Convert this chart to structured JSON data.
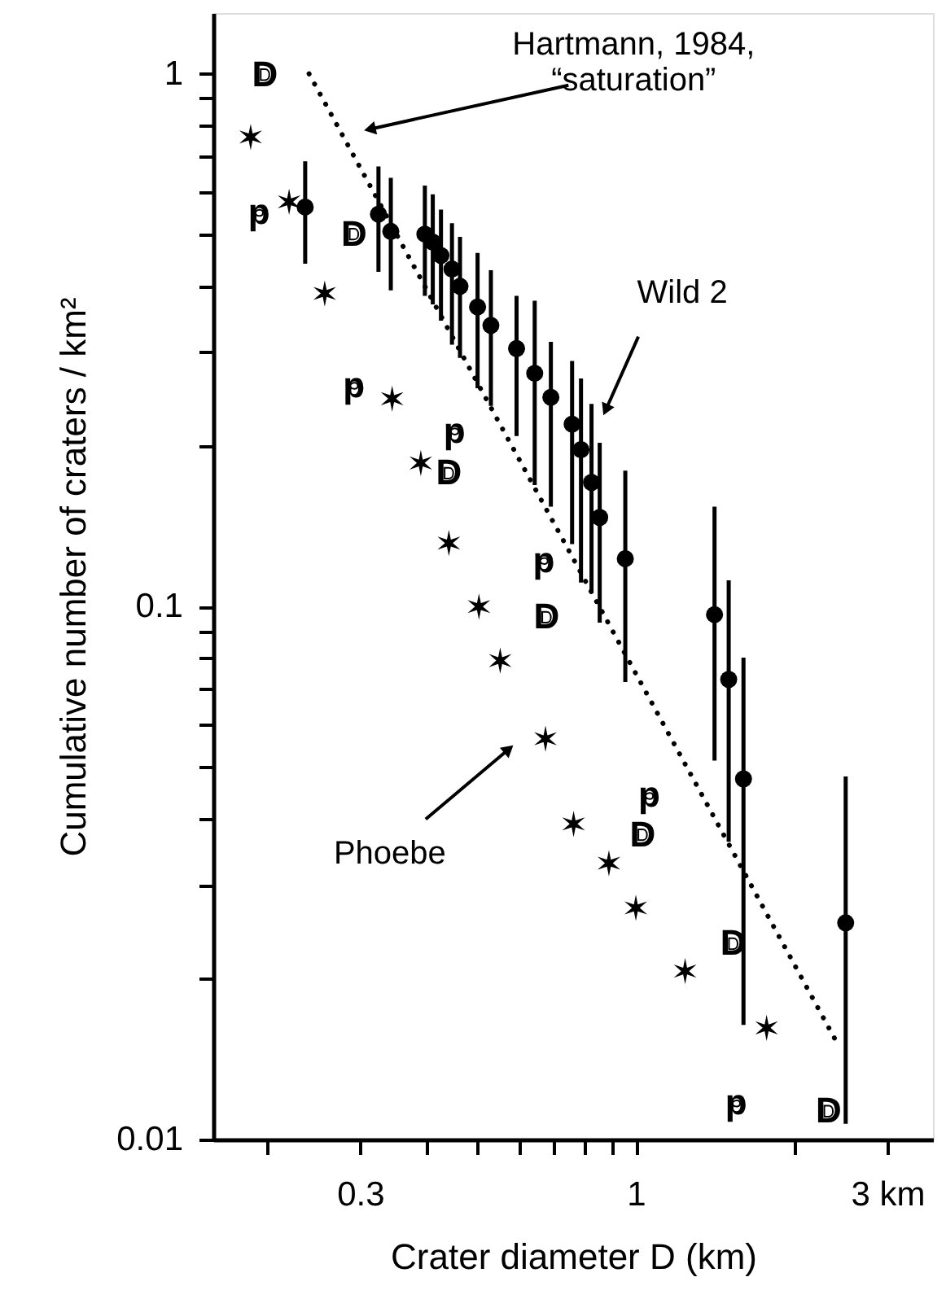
{
  "chart_data": {
    "type": "scatter",
    "xlabel": "Crater diameter D (km)",
    "ylabel": "Cumulative number of craters / km²",
    "xlim": [
      0.158,
      3.66
    ],
    "ylim": [
      0.01,
      1.3
    ],
    "log": "xy",
    "grid": false,
    "xticks": [
      {
        "value": 0.2,
        "label": null
      },
      0.3,
      {
        "value": 0.4,
        "label": null
      },
      {
        "value": 0.5,
        "label": null
      },
      {
        "value": 0.6,
        "label": null
      },
      {
        "value": 0.7,
        "label": null
      },
      {
        "value": 0.8,
        "label": null
      },
      {
        "value": 0.9,
        "label": null
      },
      1,
      {
        "value": 2,
        "label": null
      },
      {
        "value": 3,
        "label": "3 km"
      }
    ],
    "yticks": [
      0.01,
      {
        "value": 0.02,
        "label": null
      },
      {
        "value": 0.03,
        "label": null
      },
      {
        "value": 0.04,
        "label": null
      },
      {
        "value": 0.05,
        "label": null
      },
      {
        "value": 0.06,
        "label": null
      },
      {
        "value": 0.07,
        "label": null
      },
      {
        "value": 0.08,
        "label": null
      },
      {
        "value": 0.09,
        "label": null
      },
      0.1,
      {
        "value": 0.2,
        "label": null
      },
      {
        "value": 0.3,
        "label": null
      },
      {
        "value": 0.4,
        "label": null
      },
      {
        "value": 0.5,
        "label": null
      },
      {
        "value": 0.6,
        "label": null
      },
      {
        "value": 0.7,
        "label": null
      },
      {
        "value": 0.8,
        "label": null
      },
      {
        "value": 0.9,
        "label": null
      },
      1
    ],
    "series": [
      {
        "type": "scatter",
        "marker": "circle",
        "color": "#000000",
        "x": [
          0.236,
          0.325,
          0.343,
          0.398,
          0.412,
          0.427,
          0.448,
          0.464,
          0.501,
          0.531,
          0.594,
          0.643,
          0.69,
          0.757,
          0.787,
          0.824,
          0.854,
          0.955,
          1.41,
          1.5,
          1.6,
          2.5
        ],
        "values": [
          0.562,
          0.545,
          0.506,
          0.5,
          0.483,
          0.456,
          0.43,
          0.399,
          0.365,
          0.337,
          0.305,
          0.274,
          0.247,
          0.22,
          0.197,
          0.171,
          0.147,
          0.123,
          0.0966,
          0.073,
          0.0475,
          0.0255
        ],
        "errors": [
          [
            0.44,
            0.685
          ],
          [
            0.425,
            0.67
          ],
          [
            0.392,
            0.638
          ],
          [
            0.383,
            0.617
          ],
          [
            0.369,
            0.594
          ],
          [
            0.344,
            0.556
          ],
          [
            0.31,
            0.524
          ],
          [
            0.293,
            0.494
          ],
          [
            0.257,
            0.461
          ],
          [
            0.238,
            0.428
          ],
          [
            0.209,
            0.383
          ],
          [
            0.169,
            0.375
          ],
          [
            0.154,
            0.314
          ],
          [
            0.131,
            0.289
          ],
          [
            0.111,
            0.268
          ],
          [
            0.106,
            0.24
          ],
          [
            0.0933,
            0.203
          ],
          [
            0.0722,
            0.18
          ],
          [
            0.0514,
            0.154
          ],
          [
            0.0362,
            0.112
          ],
          [
            0.0164,
            0.0802
          ],
          [
            0.0107,
            0.048
          ]
        ]
      },
      {
        "type": "scatter",
        "marker": "cross",
        "color": "#000000",
        "x": [
          0.186,
          0.22,
          0.257,
          0.345,
          0.391,
          0.442,
          0.504,
          0.553,
          0.674,
          0.762,
          0.889,
          1.0,
          1.24,
          1.77
        ],
        "values": [
          0.761,
          0.575,
          0.387,
          0.2456,
          0.186,
          0.1316,
          0.1,
          0.0792,
          0.0565,
          0.0391,
          0.033,
          0.0272,
          0.0207,
          0.0162
        ]
      },
      {
        "type": "scatter",
        "name": "p",
        "color": "#000000",
        "x": [
          0.193,
          0.292,
          0.453,
          0.669,
          1.06,
          1.55
        ],
        "values": [
          0.549,
          0.26,
          0.2135,
          0.122,
          0.0442,
          0.0117
        ]
      },
      {
        "type": "scatter",
        "name": "D",
        "color": "#000000",
        "x": [
          0.198,
          0.292,
          0.442,
          0.677,
          1.03,
          1.53,
          2.32
        ],
        "values": [
          0.996,
          0.5,
          0.178,
          0.0955,
          0.0373,
          0.0233,
          0.0113
        ]
      },
      {
        "type": "line",
        "line_style": "dotted",
        "color": "#000000",
        "x": [
          0.24,
          2.38
        ],
        "values": [
          1.0,
          0.0155
        ]
      }
    ],
    "annotations": [
      {
        "text": "Hartmann, 1984,\n“saturation”",
        "x": 0.313,
        "y": 0.787
      },
      {
        "text": "Wild 2",
        "x": 0.877,
        "y": 0.234
      },
      {
        "text": "Phoebe",
        "x": 0.574,
        "y": 0.054
      }
    ]
  }
}
